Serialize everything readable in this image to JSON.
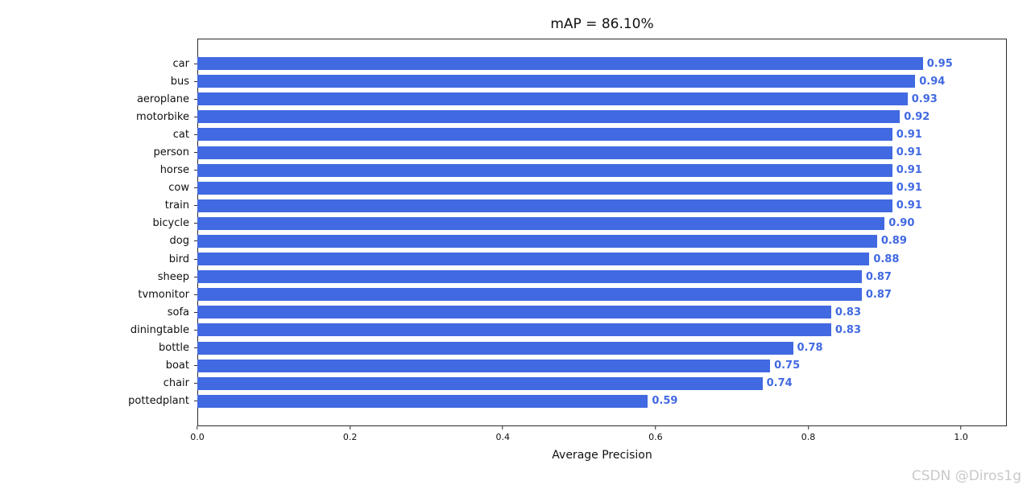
{
  "watermark": "CSDN @Diros1g",
  "chart_data": {
    "type": "bar",
    "orientation": "horizontal",
    "title": "mAP = 86.10%",
    "xlabel": "Average Precision",
    "ylabel": "",
    "categories": [
      "car",
      "bus",
      "aeroplane",
      "motorbike",
      "cat",
      "person",
      "horse",
      "cow",
      "train",
      "bicycle",
      "dog",
      "bird",
      "sheep",
      "tvmonitor",
      "sofa",
      "diningtable",
      "bottle",
      "boat",
      "chair",
      "pottedplant"
    ],
    "values": [
      0.95,
      0.94,
      0.93,
      0.92,
      0.91,
      0.91,
      0.91,
      0.91,
      0.91,
      0.9,
      0.89,
      0.88,
      0.87,
      0.87,
      0.83,
      0.83,
      0.78,
      0.75,
      0.74,
      0.59
    ],
    "value_labels": [
      "0.95",
      "0.94",
      "0.93",
      "0.92",
      "0.91",
      "0.91",
      "0.91",
      "0.91",
      "0.91",
      "0.90",
      "0.89",
      "0.88",
      "0.87",
      "0.87",
      "0.83",
      "0.83",
      "0.78",
      "0.75",
      "0.74",
      "0.59"
    ],
    "xticks": [
      0.0,
      0.2,
      0.4,
      0.6,
      0.8,
      1.0
    ],
    "xtick_labels": [
      "0.0",
      "0.2",
      "0.4",
      "0.6",
      "0.8",
      "1.0"
    ],
    "xlim": [
      0,
      1.06
    ],
    "grid": false,
    "legend": null,
    "bar_color": "#4169e1",
    "value_color": "#4169e1"
  }
}
